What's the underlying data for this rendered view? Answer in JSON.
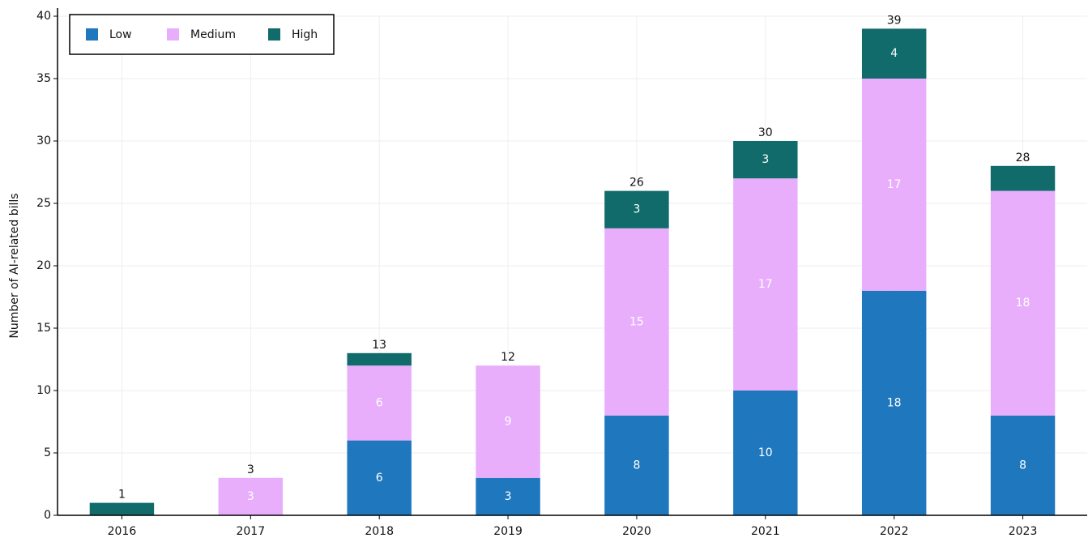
{
  "chart_data": {
    "type": "stacked_bar",
    "y_label": "Number of AI-related bills",
    "categories": [
      "2016",
      "2017",
      "2018",
      "2019",
      "2020",
      "2021",
      "2022",
      "2023"
    ],
    "series": [
      {
        "name": "Low",
        "color": "#1f77bd",
        "values": [
          0,
          0,
          6,
          3,
          8,
          10,
          18,
          8
        ]
      },
      {
        "name": "Medium",
        "color": "#e8aefc",
        "values": [
          0,
          3,
          6,
          9,
          15,
          17,
          17,
          18
        ]
      },
      {
        "name": "High",
        "color": "#116b6b",
        "values": [
          1,
          0,
          1,
          0,
          3,
          3,
          4,
          2
        ]
      }
    ],
    "totals": [
      1,
      3,
      13,
      12,
      26,
      30,
      39,
      28
    ],
    "ylim": [
      0,
      40
    ],
    "yticks": [
      0,
      5,
      10,
      15,
      20,
      25,
      30,
      35,
      40
    ],
    "grid": true,
    "legend": "upper left"
  }
}
